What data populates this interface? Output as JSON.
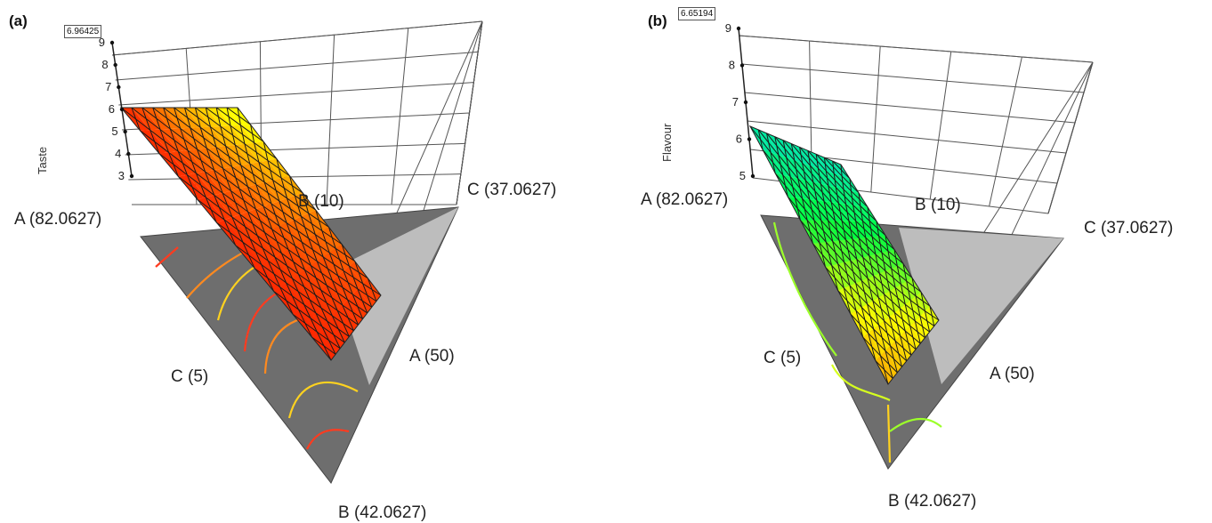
{
  "chart_data": [
    {
      "panel_tag": "(a)",
      "type": "ternary-surface-3d",
      "response_label": "Taste",
      "max_value_label": "6.96425",
      "z_ticks": [
        "3",
        "4",
        "5",
        "6",
        "7",
        "8",
        "9"
      ],
      "vertex_labels": {
        "a_high": "A (82.0627)",
        "b_low": "B (10)",
        "c_high": "C (37.0627)",
        "a_low": "A (50)",
        "c_low": "C (5)",
        "b_high": "B (42.0627)"
      },
      "surface_colormap": [
        "#ff0000",
        "#ff8000",
        "#ffff00"
      ],
      "contour_colors": [
        "#ff3b1f",
        "#ff8a1f",
        "#ffd21f"
      ]
    },
    {
      "panel_tag": "(b)",
      "type": "ternary-surface-3d",
      "response_label": "Flavour",
      "max_value_label": "6.65194",
      "z_ticks": [
        "5",
        "6",
        "7",
        "8",
        "9"
      ],
      "vertex_labels": {
        "a_high": "A (82.0627)",
        "b_low": "B (10)",
        "c_high": "C (37.0627)",
        "a_low": "A (50)",
        "c_low": "C (5)",
        "b_high": "B (42.0627)"
      },
      "surface_colormap": [
        "#ff8000",
        "#ffff00",
        "#00ff40",
        "#00e0c0"
      ],
      "contour_colors": [
        "#9cff2a",
        "#d6ff1f",
        "#ffd21f"
      ]
    }
  ]
}
